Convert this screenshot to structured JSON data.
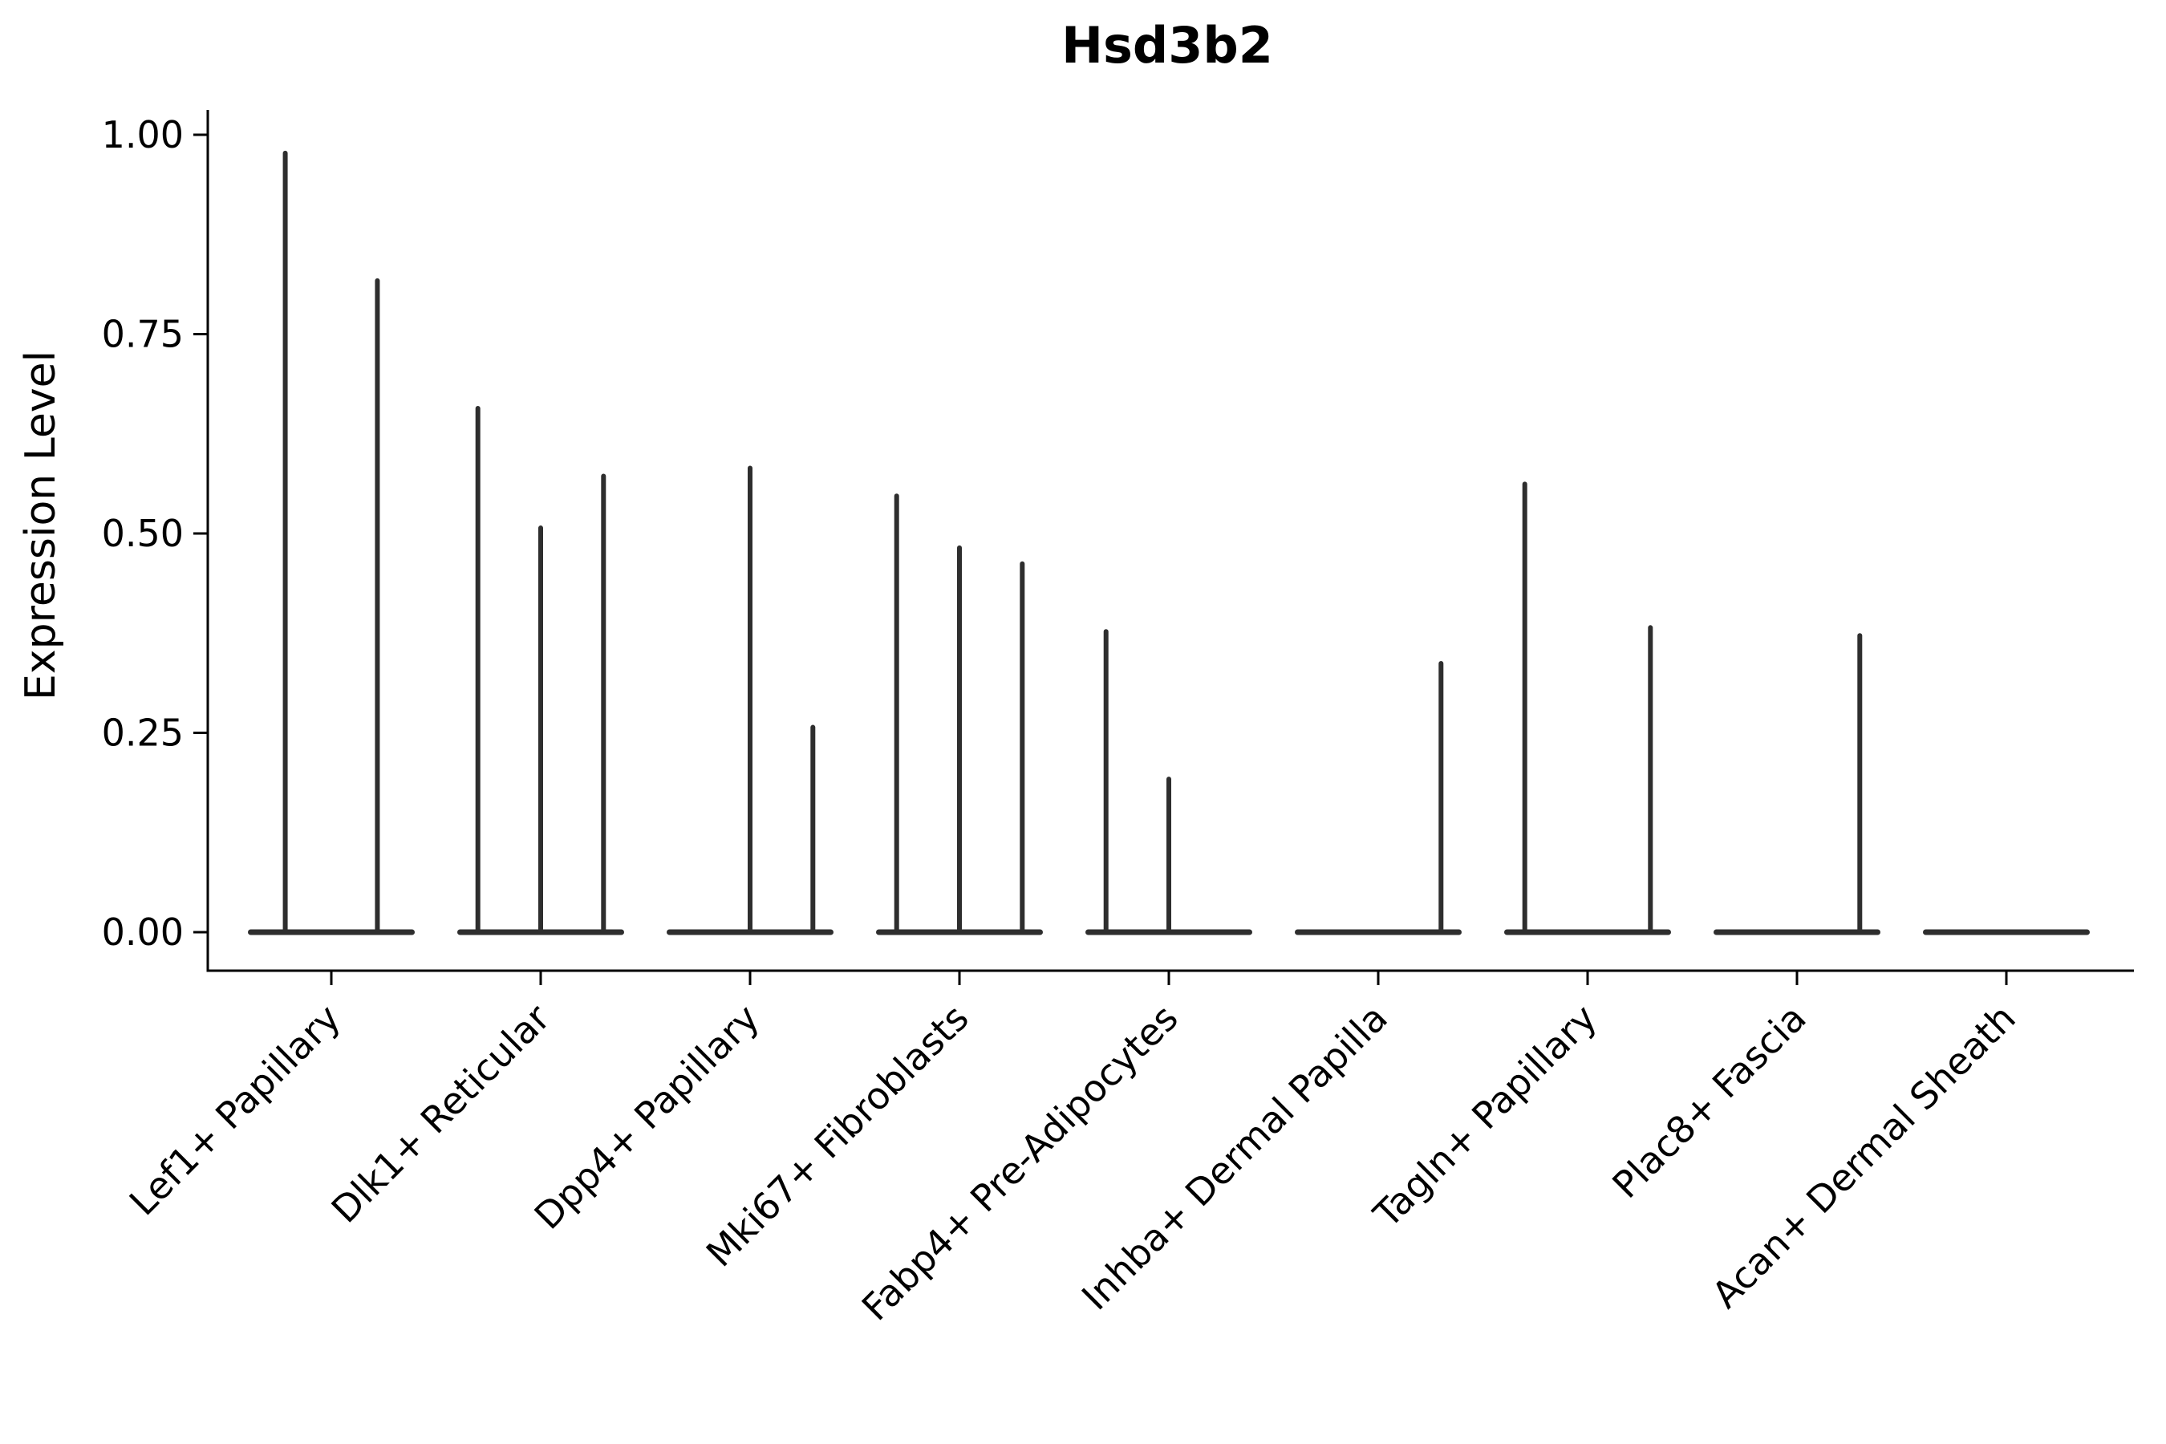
{
  "title": "Hsd3b2",
  "chart_data": {
    "type": "violin",
    "title": "Hsd3b2",
    "xlabel": "",
    "ylabel": "Expression Level",
    "ylim": [
      0,
      1.05
    ],
    "yticks": [
      0.0,
      0.25,
      0.5,
      0.75,
      1.0
    ],
    "ytick_labels": [
      "0.00",
      "0.25",
      "0.50",
      "0.75",
      "1.00"
    ],
    "grid": false,
    "legend": "none",
    "violin_color": "#2e2e2e",
    "axis_color": "#000000",
    "description": "Violin plot of Hsd3b2 expression per fibroblast cluster; each cluster shows a flat density mass at 0 with thin spikes rising to the maximum expression of sub-violins",
    "categories": [
      {
        "label": "Lef1+ Papillary",
        "spikes": [
          {
            "offset": -0.22,
            "max": 0.98
          },
          {
            "offset": 0.22,
            "max": 0.82
          }
        ]
      },
      {
        "label": "Dlk1+ Reticular",
        "spikes": [
          {
            "offset": -0.3,
            "max": 0.66
          },
          {
            "offset": 0.0,
            "max": 0.51
          },
          {
            "offset": 0.3,
            "max": 0.575
          }
        ]
      },
      {
        "label": "Dpp4+ Papillary",
        "spikes": [
          {
            "offset": 0.0,
            "max": 0.585
          },
          {
            "offset": 0.3,
            "max": 0.26
          }
        ]
      },
      {
        "label": "Mki67+ Fibroblasts",
        "spikes": [
          {
            "offset": -0.3,
            "max": 0.55
          },
          {
            "offset": 0.0,
            "max": 0.485
          },
          {
            "offset": 0.3,
            "max": 0.465
          }
        ]
      },
      {
        "label": "Fabp4+ Pre-Adipocytes",
        "spikes": [
          {
            "offset": -0.3,
            "max": 0.38
          },
          {
            "offset": 0.0,
            "max": 0.195
          }
        ]
      },
      {
        "label": "Inhba+ Dermal Papilla",
        "spikes": [
          {
            "offset": 0.3,
            "max": 0.34
          }
        ]
      },
      {
        "label": "Tagln+ Papillary",
        "spikes": [
          {
            "offset": -0.3,
            "max": 0.565
          },
          {
            "offset": 0.3,
            "max": 0.385
          }
        ]
      },
      {
        "label": "Plac8+ Fascia",
        "spikes": [
          {
            "offset": 0.3,
            "max": 0.375
          }
        ]
      },
      {
        "label": "Acan+ Dermal Sheath",
        "spikes": []
      }
    ]
  }
}
